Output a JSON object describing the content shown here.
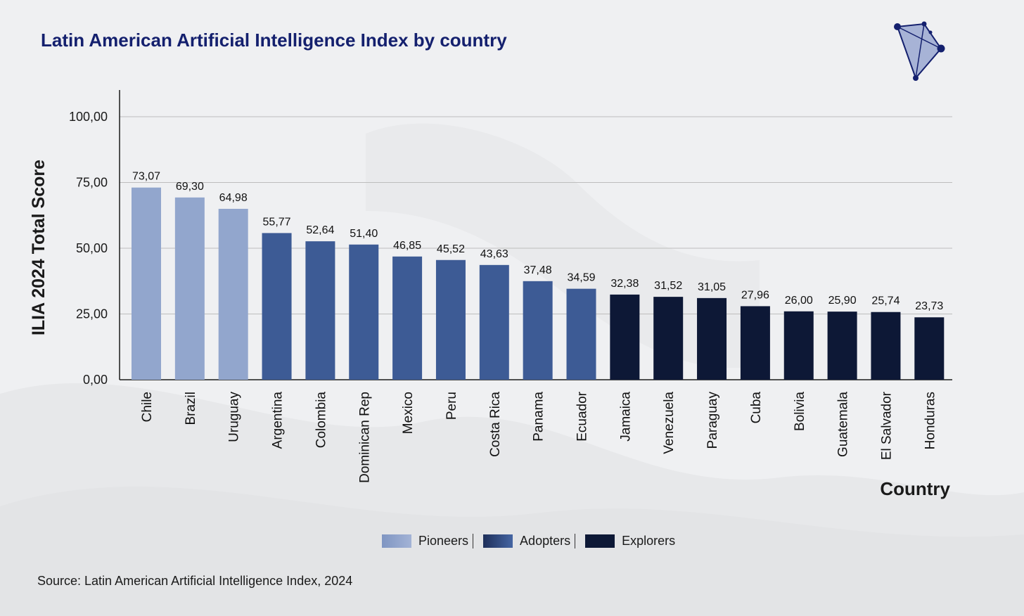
{
  "header": {
    "title": "Latin American Artificial Intelligence Index by country"
  },
  "logo": {
    "icon": "triangle-network-logo-icon"
  },
  "chart_data": {
    "type": "bar",
    "title": "Latin American Artificial Intelligence Index by country",
    "xlabel": "Country",
    "ylabel": "ILIA 2024 Total Score",
    "ylim": [
      0,
      110
    ],
    "yticks": [
      0,
      25,
      50,
      75,
      100
    ],
    "ytick_labels": [
      "0,00",
      "25,00",
      "50,00",
      "75,00",
      "100,00"
    ],
    "grid": true,
    "categories": [
      "Chile",
      "Brazil",
      "Uruguay",
      "Argentina",
      "Colombia",
      "Dominican Rep",
      "Mexico",
      "Peru",
      "Costa Rica",
      "Panama",
      "Ecuador",
      "Jamaica",
      "Venezuela",
      "Paraguay",
      "Cuba",
      "Bolivia",
      "Guatemala",
      "El Salvador",
      "Honduras"
    ],
    "values": [
      73.07,
      69.3,
      64.98,
      55.77,
      52.64,
      51.4,
      46.85,
      45.52,
      43.63,
      37.48,
      34.59,
      32.38,
      31.52,
      31.05,
      27.96,
      26.0,
      25.9,
      25.74,
      23.73
    ],
    "value_labels": [
      "73,07",
      "69,30",
      "64,98",
      "55,77",
      "52,64",
      "51,40",
      "46,85",
      "45,52",
      "43,63",
      "37,48",
      "34,59",
      "32,38",
      "31,52",
      "31,05",
      "27,96",
      "26,00",
      "25,90",
      "25,74",
      "23,73"
    ],
    "groups": [
      "Pioneers",
      "Pioneers",
      "Pioneers",
      "Adopters",
      "Adopters",
      "Adopters",
      "Adopters",
      "Adopters",
      "Adopters",
      "Adopters",
      "Adopters",
      "Explorers",
      "Explorers",
      "Explorers",
      "Explorers",
      "Explorers",
      "Explorers",
      "Explorers",
      "Explorers"
    ],
    "legend_position": "bottom-center"
  },
  "legend": {
    "items": [
      {
        "label": "Pioneers",
        "color": "#92a6cd"
      },
      {
        "label": "Adopters",
        "color": "#3d5b95"
      },
      {
        "label": "Explorers",
        "color": "#0d1836"
      }
    ]
  },
  "footer": {
    "source": "Source: Latin American Artificial Intelligence Index, 2024"
  }
}
